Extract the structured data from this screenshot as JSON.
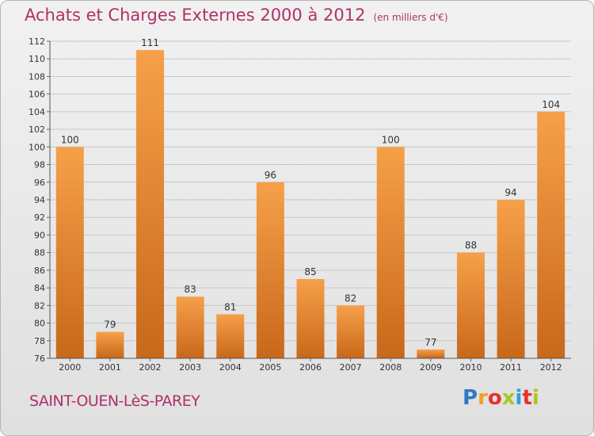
{
  "title": "Achats et Charges Externes 2000 à 2012",
  "subtitle": "(en milliers d'€)",
  "commune": "SAINT-OUEN-LèS-PAREY",
  "logo": {
    "letters": [
      "P",
      "r",
      "o",
      "x",
      "i",
      "t",
      "i"
    ],
    "colors": [
      "#2e78c8",
      "#f0a020",
      "#e83030",
      "#a8c820",
      "#30a0d8",
      "#e83030",
      "#a8c820"
    ]
  },
  "colors": {
    "bar_top": "#f6a04a",
    "bar_bottom": "#c8681a",
    "text": "#b0306a"
  },
  "chart_data": {
    "type": "bar",
    "categories": [
      "2000",
      "2001",
      "2002",
      "2003",
      "2004",
      "2005",
      "2006",
      "2007",
      "2008",
      "2009",
      "2010",
      "2011",
      "2012"
    ],
    "values": [
      100,
      79,
      111,
      83,
      81,
      96,
      85,
      82,
      100,
      77,
      88,
      94,
      104
    ],
    "ylim": [
      76,
      112
    ],
    "yticks": [
      76,
      78,
      80,
      82,
      84,
      86,
      88,
      90,
      92,
      94,
      96,
      98,
      100,
      102,
      104,
      106,
      108,
      110,
      112
    ],
    "grid": true,
    "legend": "none"
  }
}
